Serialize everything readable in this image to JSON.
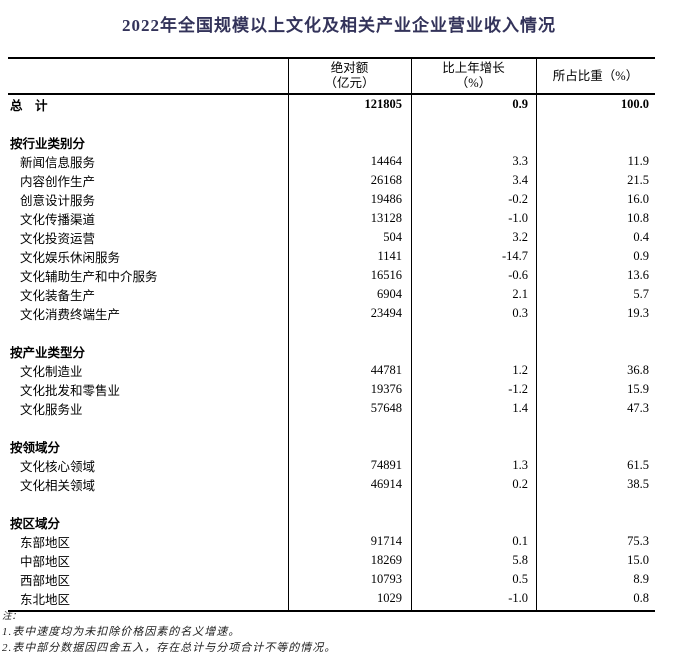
{
  "title": "2022年全国规模以上文化及相关产业企业营业收入情况",
  "colors": {
    "title_text": "#33335a",
    "table_border": "#000000",
    "body_text": "#000000",
    "notes_text": "#222222",
    "background": "#ffffff"
  },
  "table": {
    "columns": [
      {
        "line1": "绝对额",
        "line2": "（亿元）"
      },
      {
        "line1": "比上年增长",
        "line2": "（%）"
      },
      {
        "line1": "所占比重（%）",
        "line2": ""
      }
    ],
    "rows": [
      {
        "type": "total",
        "label": "总　计",
        "abs": "121805",
        "growth": "0.9",
        "share": "100.0"
      },
      {
        "type": "blank",
        "label": "",
        "abs": "",
        "growth": "",
        "share": ""
      },
      {
        "type": "section",
        "label": "按行业类别分",
        "abs": "",
        "growth": "",
        "share": ""
      },
      {
        "type": "item",
        "label": "新闻信息服务",
        "abs": "14464",
        "growth": "3.3",
        "share": "11.9"
      },
      {
        "type": "item",
        "label": "内容创作生产",
        "abs": "26168",
        "growth": "3.4",
        "share": "21.5"
      },
      {
        "type": "item",
        "label": "创意设计服务",
        "abs": "19486",
        "growth": "-0.2",
        "share": "16.0"
      },
      {
        "type": "item",
        "label": "文化传播渠道",
        "abs": "13128",
        "growth": "-1.0",
        "share": "10.8"
      },
      {
        "type": "item",
        "label": "文化投资运营",
        "abs": "504",
        "growth": "3.2",
        "share": "0.4"
      },
      {
        "type": "item",
        "label": "文化娱乐休闲服务",
        "abs": "1141",
        "growth": "-14.7",
        "share": "0.9"
      },
      {
        "type": "item",
        "label": "文化辅助生产和中介服务",
        "abs": "16516",
        "growth": "-0.6",
        "share": "13.6"
      },
      {
        "type": "item",
        "label": "文化装备生产",
        "abs": "6904",
        "growth": "2.1",
        "share": "5.7"
      },
      {
        "type": "item",
        "label": "文化消费终端生产",
        "abs": "23494",
        "growth": "0.3",
        "share": "19.3"
      },
      {
        "type": "blank",
        "label": "",
        "abs": "",
        "growth": "",
        "share": ""
      },
      {
        "type": "section",
        "label": "按产业类型分",
        "abs": "",
        "growth": "",
        "share": ""
      },
      {
        "type": "item",
        "label": "文化制造业",
        "abs": "44781",
        "growth": "1.2",
        "share": "36.8"
      },
      {
        "type": "item",
        "label": "文化批发和零售业",
        "abs": "19376",
        "growth": "-1.2",
        "share": "15.9"
      },
      {
        "type": "item",
        "label": "文化服务业",
        "abs": "57648",
        "growth": "1.4",
        "share": "47.3"
      },
      {
        "type": "blank",
        "label": "",
        "abs": "",
        "growth": "",
        "share": ""
      },
      {
        "type": "section",
        "label": "按领域分",
        "abs": "",
        "growth": "",
        "share": ""
      },
      {
        "type": "item",
        "label": "文化核心领域",
        "abs": "74891",
        "growth": "1.3",
        "share": "61.5"
      },
      {
        "type": "item",
        "label": "文化相关领域",
        "abs": "46914",
        "growth": "0.2",
        "share": "38.5"
      },
      {
        "type": "blank",
        "label": "",
        "abs": "",
        "growth": "",
        "share": ""
      },
      {
        "type": "section",
        "label": "按区域分",
        "abs": "",
        "growth": "",
        "share": ""
      },
      {
        "type": "item",
        "label": "东部地区",
        "abs": "91714",
        "growth": "0.1",
        "share": "75.3"
      },
      {
        "type": "item",
        "label": "中部地区",
        "abs": "18269",
        "growth": "5.8",
        "share": "15.0"
      },
      {
        "type": "item",
        "label": "西部地区",
        "abs": "10793",
        "growth": "0.5",
        "share": "8.9"
      },
      {
        "type": "item",
        "label": "东北地区",
        "abs": "1029",
        "growth": "-1.0",
        "share": "0.8"
      }
    ]
  },
  "notes": {
    "label": "注：",
    "items": [
      "1.表中速度均为未扣除价格因素的名义增速。",
      "2.表中部分数据因四舍五入，存在总计与分项合计不等的情况。"
    ]
  }
}
